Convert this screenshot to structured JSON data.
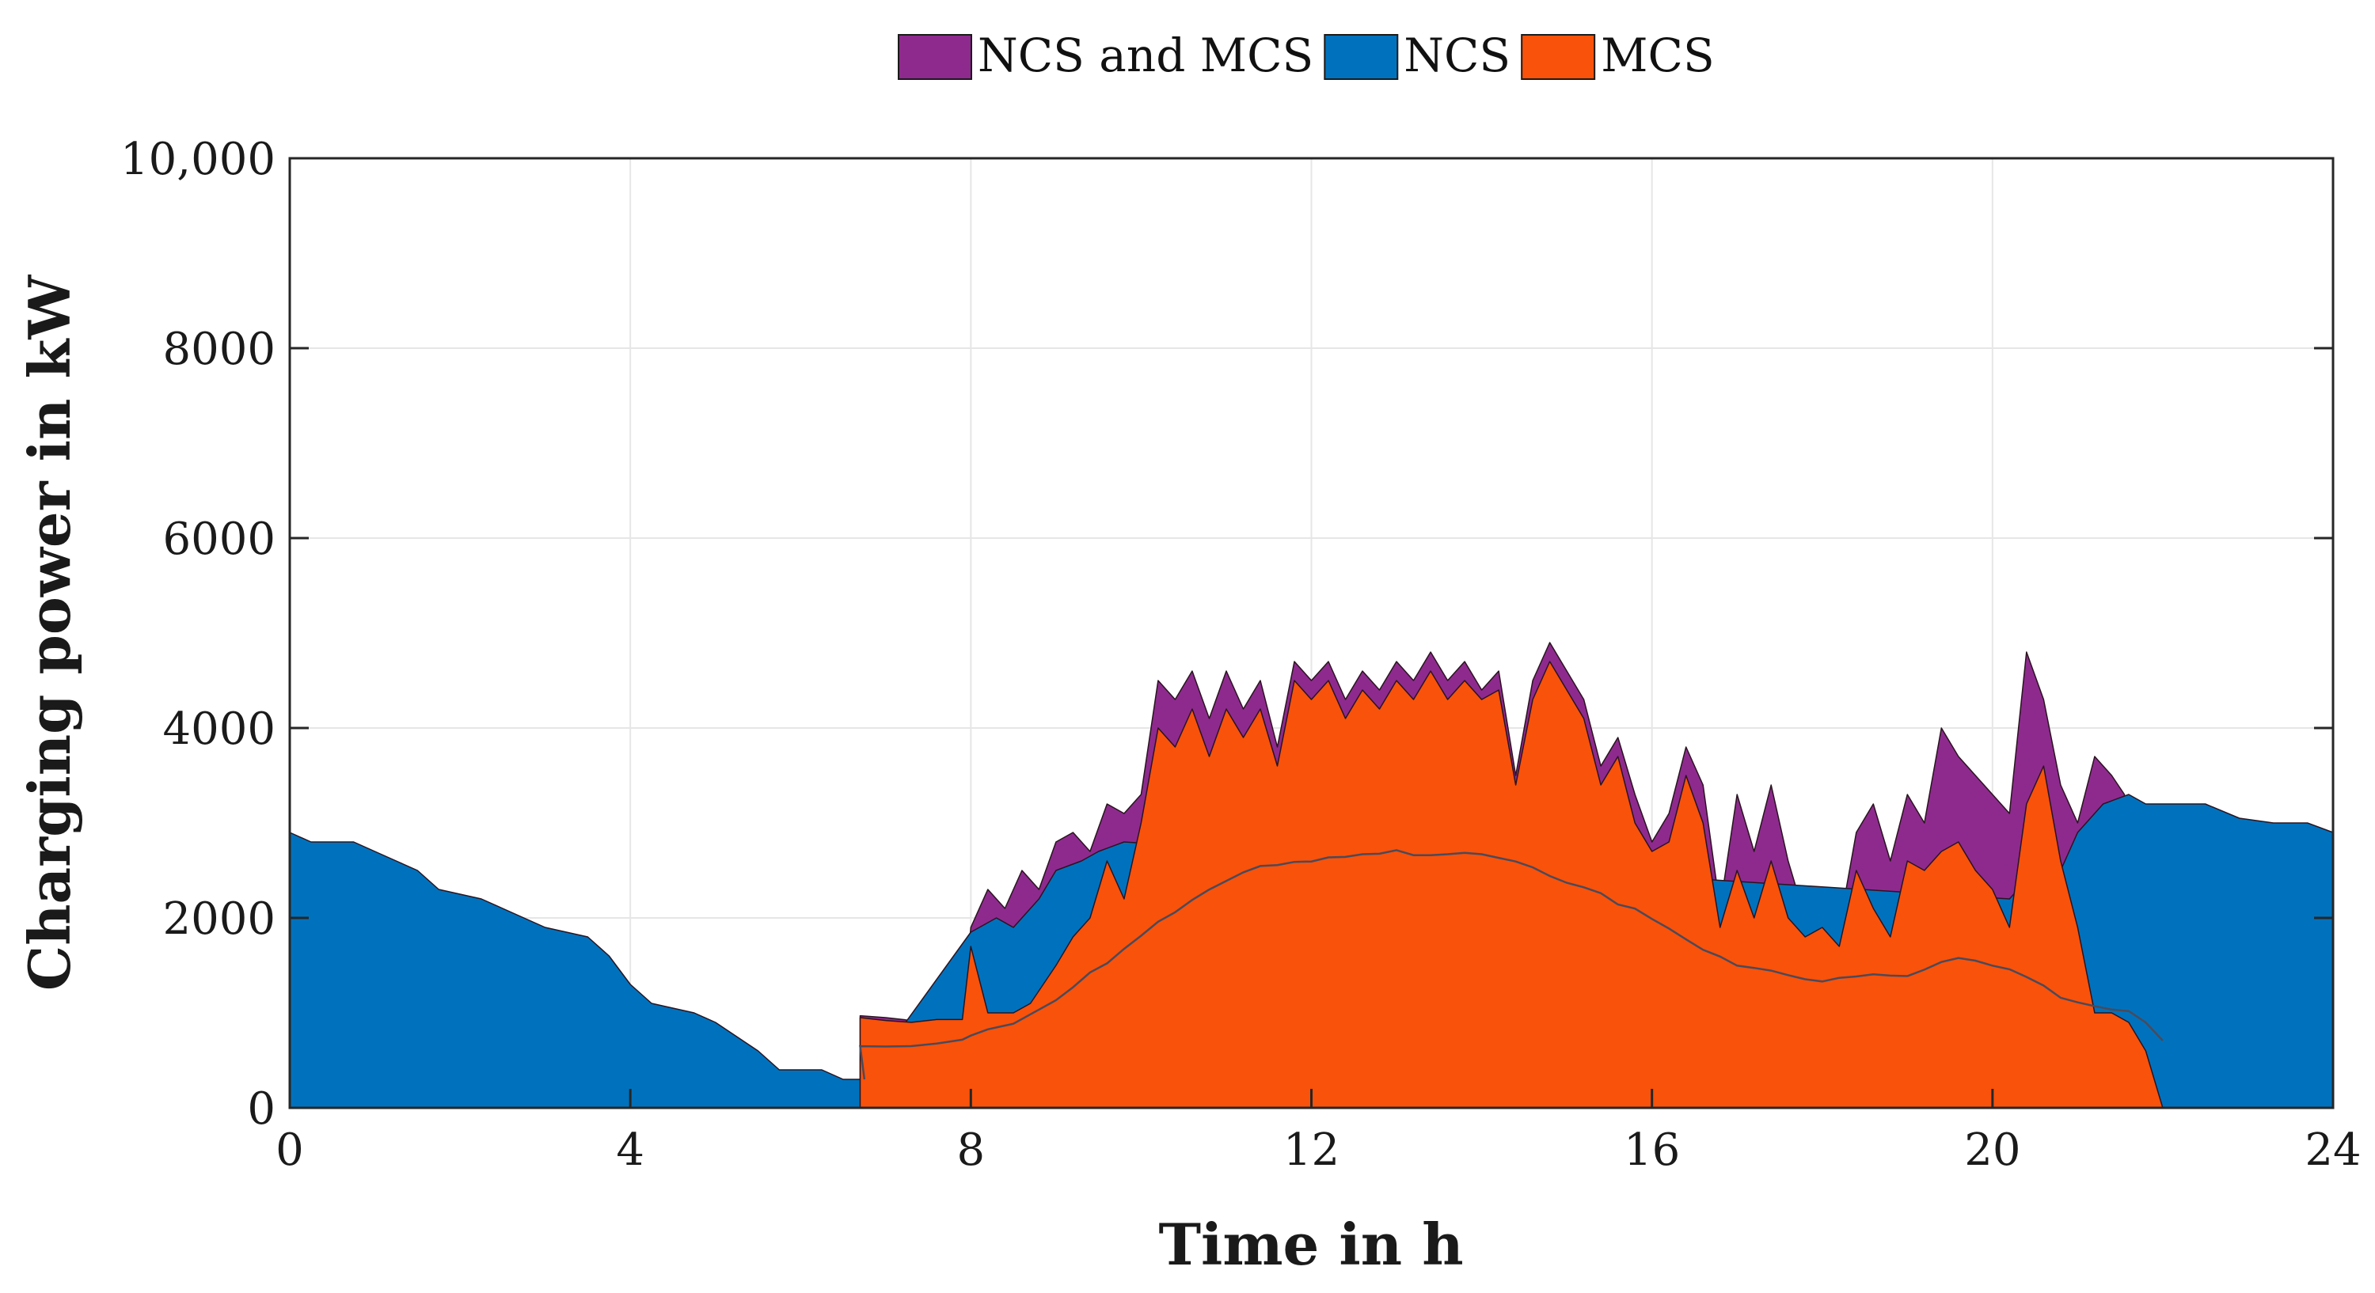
{
  "chart_data": {
    "type": "area",
    "xlabel": "Time in h",
    "ylabel": "Charging power in kW",
    "xlim": [
      0,
      24
    ],
    "ylim": [
      0,
      10000
    ],
    "x_ticks": [
      "0",
      "4",
      "8",
      "12",
      "16",
      "20",
      "24"
    ],
    "y_ticks": [
      "0",
      "2000",
      "4000",
      "6000",
      "8000",
      "10,000"
    ],
    "grid": true,
    "legend_position": "top-center",
    "legend": [
      {
        "label": "NCS and MCS",
        "color": "#8E2A8E"
      },
      {
        "label": "NCS",
        "color": "#0072BD"
      },
      {
        "label": "MCS",
        "color": "#F9520A"
      }
    ],
    "series": [
      {
        "name": "NCS and MCS",
        "color": "#8E2A8E",
        "points": [
          [
            6.7,
            970
          ],
          [
            7.0,
            950
          ],
          [
            7.3,
            920
          ],
          [
            7.6,
            950
          ],
          [
            7.9,
            950
          ],
          [
            8.0,
            1900
          ],
          [
            8.2,
            2300
          ],
          [
            8.4,
            2100
          ],
          [
            8.6,
            2500
          ],
          [
            8.8,
            2300
          ],
          [
            9.0,
            2800
          ],
          [
            9.2,
            2900
          ],
          [
            9.4,
            2700
          ],
          [
            9.6,
            3200
          ],
          [
            9.8,
            3100
          ],
          [
            10.0,
            3300
          ],
          [
            10.2,
            4500
          ],
          [
            10.4,
            4300
          ],
          [
            10.6,
            4600
          ],
          [
            10.8,
            4100
          ],
          [
            11.0,
            4600
          ],
          [
            11.2,
            4200
          ],
          [
            11.4,
            4500
          ],
          [
            11.6,
            3800
          ],
          [
            11.8,
            4700
          ],
          [
            12.0,
            4500
          ],
          [
            12.2,
            4700
          ],
          [
            12.4,
            4300
          ],
          [
            12.6,
            4600
          ],
          [
            12.8,
            4400
          ],
          [
            13.0,
            4700
          ],
          [
            13.2,
            4500
          ],
          [
            13.4,
            4800
          ],
          [
            13.6,
            4500
          ],
          [
            13.8,
            4700
          ],
          [
            14.0,
            4400
          ],
          [
            14.2,
            4600
          ],
          [
            14.4,
            3500
          ],
          [
            14.6,
            4500
          ],
          [
            14.8,
            4900
          ],
          [
            15.0,
            4600
          ],
          [
            15.2,
            4300
          ],
          [
            15.4,
            3600
          ],
          [
            15.6,
            3900
          ],
          [
            15.8,
            3300
          ],
          [
            16.0,
            2800
          ],
          [
            16.2,
            3100
          ],
          [
            16.4,
            3800
          ],
          [
            16.6,
            3400
          ],
          [
            16.8,
            2100
          ],
          [
            17.0,
            3300
          ],
          [
            17.2,
            2700
          ],
          [
            17.4,
            3400
          ],
          [
            17.6,
            2600
          ],
          [
            17.8,
            2000
          ],
          [
            18.0,
            2100
          ],
          [
            18.2,
            1900
          ],
          [
            18.4,
            2900
          ],
          [
            18.6,
            3200
          ],
          [
            18.8,
            2600
          ],
          [
            19.0,
            3300
          ],
          [
            19.2,
            3000
          ],
          [
            19.4,
            4000
          ],
          [
            19.6,
            3700
          ],
          [
            19.8,
            3500
          ],
          [
            20.0,
            3300
          ],
          [
            20.2,
            3100
          ],
          [
            20.4,
            4800
          ],
          [
            20.6,
            4300
          ],
          [
            20.8,
            3400
          ],
          [
            21.0,
            3000
          ],
          [
            21.2,
            3700
          ],
          [
            21.4,
            3500
          ],
          [
            21.55,
            3300
          ]
        ]
      },
      {
        "name": "NCS",
        "color": "#0072BD",
        "points": [
          [
            0,
            2900
          ],
          [
            0.25,
            2800
          ],
          [
            0.75,
            2800
          ],
          [
            1.0,
            2700
          ],
          [
            1.25,
            2600
          ],
          [
            1.5,
            2500
          ],
          [
            1.75,
            2300
          ],
          [
            2.25,
            2200
          ],
          [
            2.5,
            2100
          ],
          [
            2.75,
            2000
          ],
          [
            3.0,
            1900
          ],
          [
            3.5,
            1800
          ],
          [
            3.75,
            1600
          ],
          [
            4.0,
            1300
          ],
          [
            4.25,
            1100
          ],
          [
            4.5,
            1050
          ],
          [
            4.75,
            1000
          ],
          [
            5.0,
            900
          ],
          [
            5.25,
            750
          ],
          [
            5.5,
            600
          ],
          [
            5.75,
            400
          ],
          [
            6.25,
            400
          ],
          [
            6.5,
            300
          ],
          [
            6.75,
            300
          ],
          [
            8.0,
            1850
          ],
          [
            8.3,
            2000
          ],
          [
            8.5,
            1900
          ],
          [
            8.8,
            2200
          ],
          [
            9.0,
            2500
          ],
          [
            9.3,
            2600
          ],
          [
            9.5,
            2700
          ],
          [
            9.8,
            2800
          ],
          [
            20.2,
            2200
          ],
          [
            20.5,
            2500
          ],
          [
            20.8,
            2500
          ],
          [
            21.0,
            2900
          ],
          [
            21.3,
            3200
          ],
          [
            21.6,
            3300
          ],
          [
            21.8,
            3200
          ],
          [
            22.0,
            3200
          ],
          [
            22.5,
            3200
          ],
          [
            22.9,
            3050
          ],
          [
            23.3,
            3000
          ],
          [
            23.7,
            3000
          ],
          [
            24.0,
            2900
          ]
        ]
      },
      {
        "name": "MCS",
        "color": "#F9520A",
        "points": [
          [
            6.7,
            950
          ],
          [
            7.0,
            920
          ],
          [
            7.3,
            900
          ],
          [
            7.6,
            930
          ],
          [
            7.9,
            930
          ],
          [
            8.0,
            1700
          ],
          [
            8.2,
            1000
          ],
          [
            8.5,
            1000
          ],
          [
            8.7,
            1100
          ],
          [
            9.0,
            1500
          ],
          [
            9.2,
            1800
          ],
          [
            9.4,
            2000
          ],
          [
            9.6,
            2600
          ],
          [
            9.8,
            2200
          ],
          [
            10.0,
            3000
          ],
          [
            10.2,
            4000
          ],
          [
            10.4,
            3800
          ],
          [
            10.6,
            4200
          ],
          [
            10.8,
            3700
          ],
          [
            11.0,
            4200
          ],
          [
            11.2,
            3900
          ],
          [
            11.4,
            4200
          ],
          [
            11.6,
            3600
          ],
          [
            11.8,
            4500
          ],
          [
            12.0,
            4300
          ],
          [
            12.2,
            4500
          ],
          [
            12.4,
            4100
          ],
          [
            12.6,
            4400
          ],
          [
            12.8,
            4200
          ],
          [
            13.0,
            4500
          ],
          [
            13.2,
            4300
          ],
          [
            13.4,
            4600
          ],
          [
            13.6,
            4300
          ],
          [
            13.8,
            4500
          ],
          [
            14.0,
            4300
          ],
          [
            14.2,
            4400
          ],
          [
            14.4,
            3400
          ],
          [
            14.6,
            4300
          ],
          [
            14.8,
            4700
          ],
          [
            15.0,
            4400
          ],
          [
            15.2,
            4100
          ],
          [
            15.4,
            3400
          ],
          [
            15.6,
            3700
          ],
          [
            15.8,
            3000
          ],
          [
            16.0,
            2700
          ],
          [
            16.2,
            2800
          ],
          [
            16.4,
            3500
          ],
          [
            16.6,
            3000
          ],
          [
            16.8,
            1900
          ],
          [
            17.0,
            2500
          ],
          [
            17.2,
            2000
          ],
          [
            17.4,
            2600
          ],
          [
            17.6,
            2000
          ],
          [
            17.8,
            1800
          ],
          [
            18.0,
            1900
          ],
          [
            18.2,
            1700
          ],
          [
            18.4,
            2500
          ],
          [
            18.6,
            2100
          ],
          [
            18.8,
            1800
          ],
          [
            19.0,
            2600
          ],
          [
            19.2,
            2500
          ],
          [
            19.4,
            2700
          ],
          [
            19.6,
            2800
          ],
          [
            19.8,
            2500
          ],
          [
            20.0,
            2300
          ],
          [
            20.2,
            1900
          ],
          [
            20.4,
            3200
          ],
          [
            20.6,
            3600
          ],
          [
            20.8,
            2600
          ],
          [
            21.0,
            1900
          ],
          [
            21.2,
            1000
          ],
          [
            21.4,
            1000
          ],
          [
            21.6,
            900
          ],
          [
            21.8,
            600
          ],
          [
            22.0,
            0
          ]
        ]
      }
    ]
  }
}
